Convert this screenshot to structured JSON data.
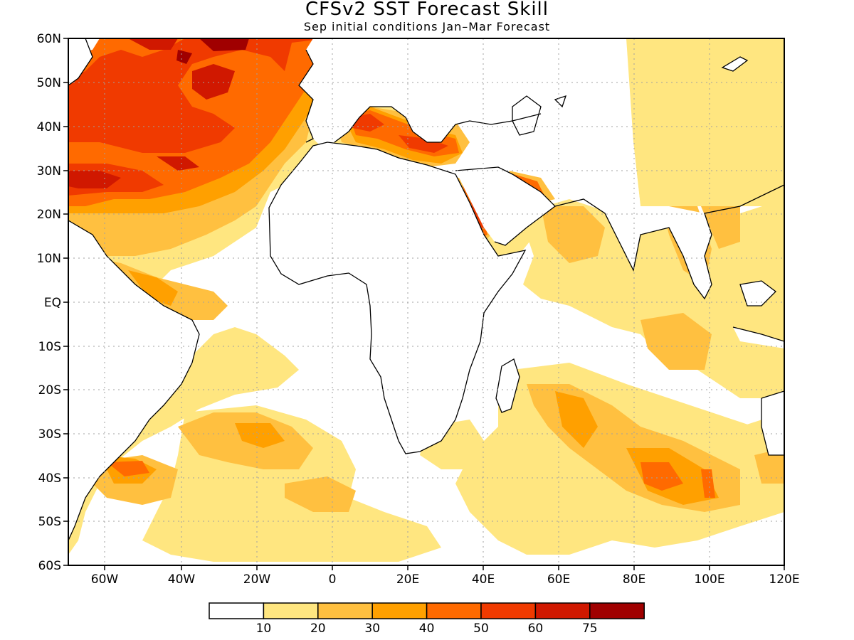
{
  "title": "CFSv2 SST Forecast Skill",
  "subtitle": "Sep initial conditions  Jan–Mar Forecast",
  "lat_labels": [
    "60N",
    "50N",
    "40N",
    "30N",
    "20N",
    "10N",
    "EQ",
    "10S",
    "20S",
    "30S",
    "40S",
    "50S",
    "60S"
  ],
  "lon_labels": [
    "60W",
    "40W",
    "20W",
    "0",
    "20E",
    "40E",
    "60E",
    "80E",
    "100E",
    "120E"
  ],
  "colorbar": {
    "levels": [
      "10",
      "20",
      "30",
      "40",
      "50",
      "60",
      "75"
    ],
    "colors": [
      "#ffffff",
      "#ffe680",
      "#ffc040",
      "#ffa000",
      "#ff6a00",
      "#f03a00",
      "#d01800",
      "#a00000"
    ]
  },
  "palette": {
    "c10": "#ffe680",
    "c20": "#ffc040",
    "c30": "#ffa000",
    "c40": "#ff6a00",
    "c50": "#f03a00",
    "c60": "#d01800",
    "c75": "#a00000"
  }
}
